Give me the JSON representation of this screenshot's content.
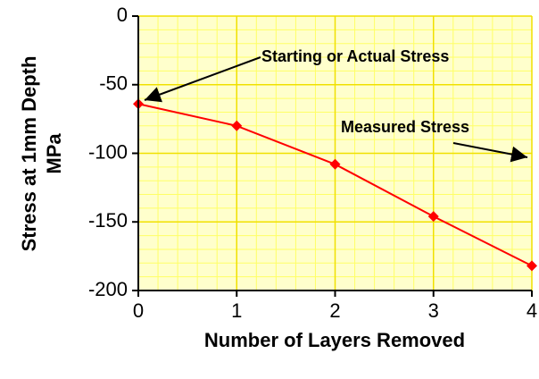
{
  "chart_data": {
    "type": "line",
    "x_label": "Number of Layers Removed",
    "y_label": [
      "Stress at 1mm Depth",
      "MPa"
    ],
    "x": [
      0,
      1,
      2,
      3,
      4
    ],
    "series": [
      {
        "name": "Stress",
        "color": "#ff0000",
        "values": [
          -64,
          -80,
          -108,
          -146,
          -182
        ]
      }
    ],
    "xlim": [
      0,
      4
    ],
    "xticks": [
      0,
      1,
      2,
      3,
      4
    ],
    "ylim": [
      -200,
      0
    ],
    "yticks": [
      0,
      -50,
      -100,
      -150,
      -200
    ],
    "grid": true,
    "annotations": [
      "Starting or Actual Stress",
      "Measured Stress"
    ]
  }
}
